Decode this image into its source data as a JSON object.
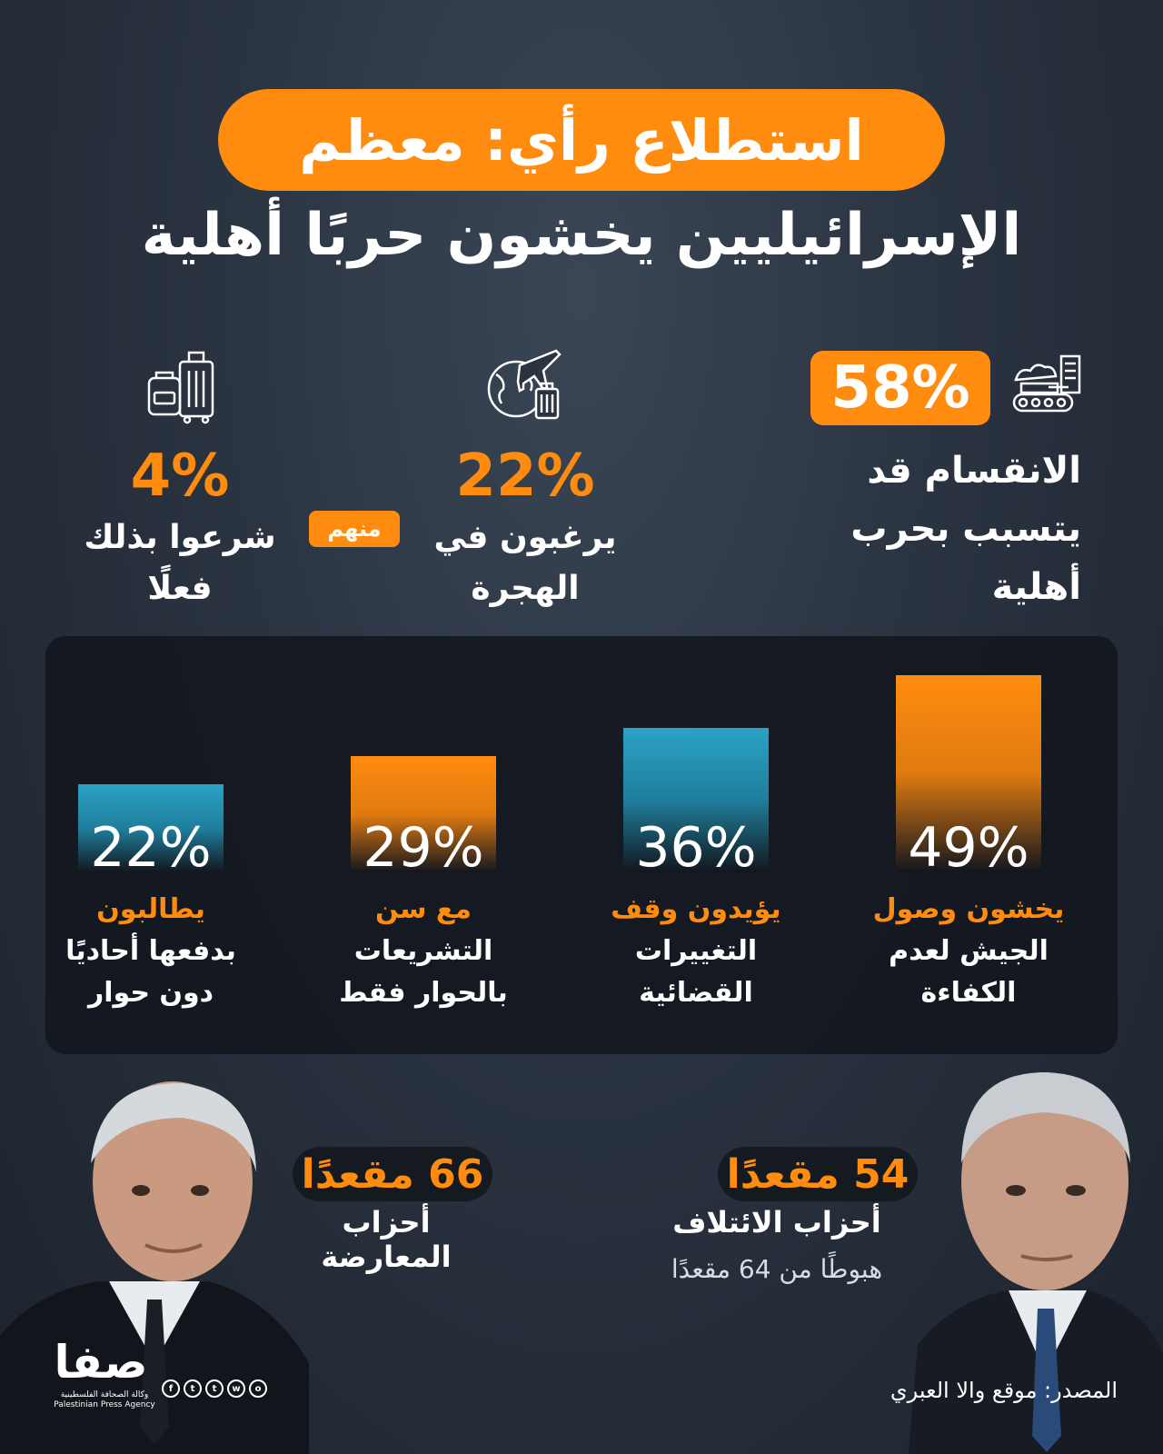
{
  "header": {
    "title_line1": "استطلاع رأي: معظم",
    "title_line2": "الإسرائيليين يخشون حربًا أهلية"
  },
  "stats": {
    "main": {
      "value": "58%",
      "lines": [
        "الانقسام قد",
        "يتسبب بحرب",
        "أهلية"
      ],
      "icon": "tank-city-icon"
    },
    "emigrate": {
      "value": "22%",
      "lines": [
        "يرغبون في",
        "الهجرة"
      ],
      "icon": "globe-plane-luggage-icon"
    },
    "connector": "منهم",
    "started": {
      "value": "4%",
      "lines": [
        "شرعوا بذلك",
        "فعلًا"
      ],
      "icon": "luggage-icon"
    }
  },
  "chart_data": {
    "type": "bar",
    "unit": "%",
    "bars": [
      {
        "value": 49,
        "label_top": "يخشون وصول",
        "label_lines": [
          "الجيش لعدم",
          "الكفاءة"
        ],
        "color": "#ff8c0f"
      },
      {
        "value": 36,
        "label_top": "يؤيدون وقف",
        "label_lines": [
          "التغييرات",
          "القضائية"
        ],
        "color": "#2aa3c6"
      },
      {
        "value": 29,
        "label_top": "مع سن",
        "label_lines": [
          "التشريعات",
          "بالحوار فقط"
        ],
        "color": "#ff8c0f"
      },
      {
        "value": 22,
        "label_top": "يطالبون",
        "label_lines": [
          "بدفعها أحاديًا",
          "دون حوار"
        ],
        "color": "#2aa3c6"
      }
    ],
    "value_labels": [
      "49%",
      "36%",
      "29%",
      "22%"
    ]
  },
  "seats": {
    "coalition": {
      "count": "54 مقعدًا",
      "label": "أحزاب الائتلاف",
      "sub": "هبوطًا من 64 مقعدًا"
    },
    "opposition": {
      "count": "66 مقعدًا",
      "label": "أحزاب المعارضة"
    }
  },
  "footer": {
    "source": "المصدر: موقع والا العبري",
    "logo_text": "صفا",
    "logo_sub_ar": "وكالة الصحافة الفلسطينية",
    "logo_sub_en": "Palestinian Press Agency",
    "social": [
      "f",
      "t",
      "t",
      "w",
      "o"
    ]
  },
  "colors": {
    "accent": "#ff8c0f",
    "blue": "#2aa3c6",
    "panel": "#12161e"
  }
}
